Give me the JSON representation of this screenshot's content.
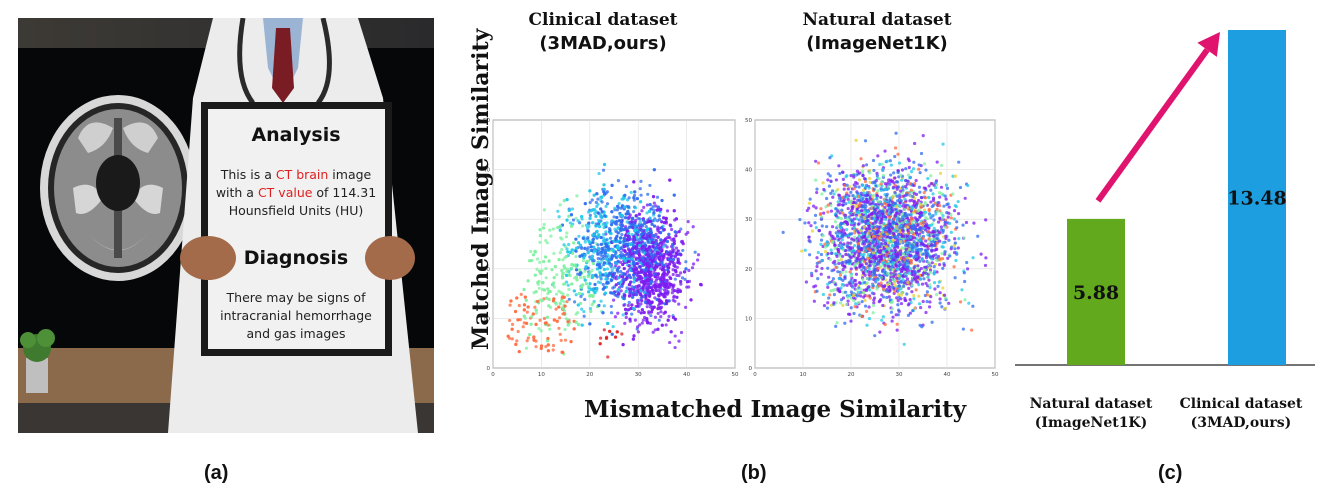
{
  "panel_a": {
    "board": {
      "analysis_title": "Analysis",
      "analysis_l1_pre": "This is a ",
      "analysis_l1_red": "CT brain",
      "analysis_l1_post": " image",
      "analysis_l2_pre": "with a ",
      "analysis_l2_red": "CT value",
      "analysis_l2_post": " of 114.31",
      "analysis_l3": "Hounsfield Units (HU)",
      "diagnosis_title": "Diagnosis",
      "diagnosis_l1": "There may be signs of",
      "diagnosis_l2": "intracranial hemorrhage",
      "diagnosis_l3": "and gas images"
    },
    "label": "(a)"
  },
  "panel_b": {
    "label": "(b)",
    "ylabel": "Matched Image Similarity",
    "xlabel": "Mismatched Image Similarity"
  },
  "panel_c": {
    "label": "(c)"
  },
  "colors": {
    "green_bar": "#62a91e",
    "blue_bar": "#1d9ee0",
    "arrow": "#e0136e",
    "red_text": "#e02020"
  },
  "chart_data": [
    {
      "type": "scatter",
      "title_line1": "Clinical dataset",
      "title_line2": "(3MAD,ours)",
      "xlim": [
        0,
        50
      ],
      "ylim": [
        0,
        50
      ],
      "xticks": [
        "0",
        "10",
        "20",
        "30",
        "40",
        "50"
      ],
      "yticks": [
        "0",
        "10",
        "20",
        "30",
        "40",
        "50"
      ],
      "grid": true,
      "cluster_center": [
        31,
        21
      ],
      "note_colors": [
        "#ff6a3d",
        "#7ff0a0",
        "#20c8e8",
        "#2f6cf0",
        "#7d1cf2"
      ]
    },
    {
      "type": "scatter",
      "title_line1": "Natural dataset",
      "title_line2": "(ImageNet1K)",
      "xlim": [
        0,
        50
      ],
      "ylim": [
        0,
        50
      ],
      "xticks": [
        "0",
        "10",
        "20",
        "30",
        "40",
        "50"
      ],
      "yticks": [
        "0",
        "10",
        "20",
        "30",
        "40",
        "50"
      ],
      "grid": true,
      "cluster_center": [
        28,
        26
      ],
      "note_colors": [
        "#ff6a3d",
        "#e8d030",
        "#7ff0a0",
        "#20c8e8",
        "#2f6cf0",
        "#7d1cf2"
      ]
    },
    {
      "type": "bar",
      "categories": [
        [
          "Natural dataset",
          "(ImageNet1K)"
        ],
        [
          "Clinical dataset",
          "(3MAD,ours)"
        ]
      ],
      "values": [
        5.88,
        13.48
      ],
      "value_labels": [
        "5.88",
        "13.48"
      ],
      "ylim": [
        0,
        13.48
      ],
      "grid": false
    }
  ]
}
